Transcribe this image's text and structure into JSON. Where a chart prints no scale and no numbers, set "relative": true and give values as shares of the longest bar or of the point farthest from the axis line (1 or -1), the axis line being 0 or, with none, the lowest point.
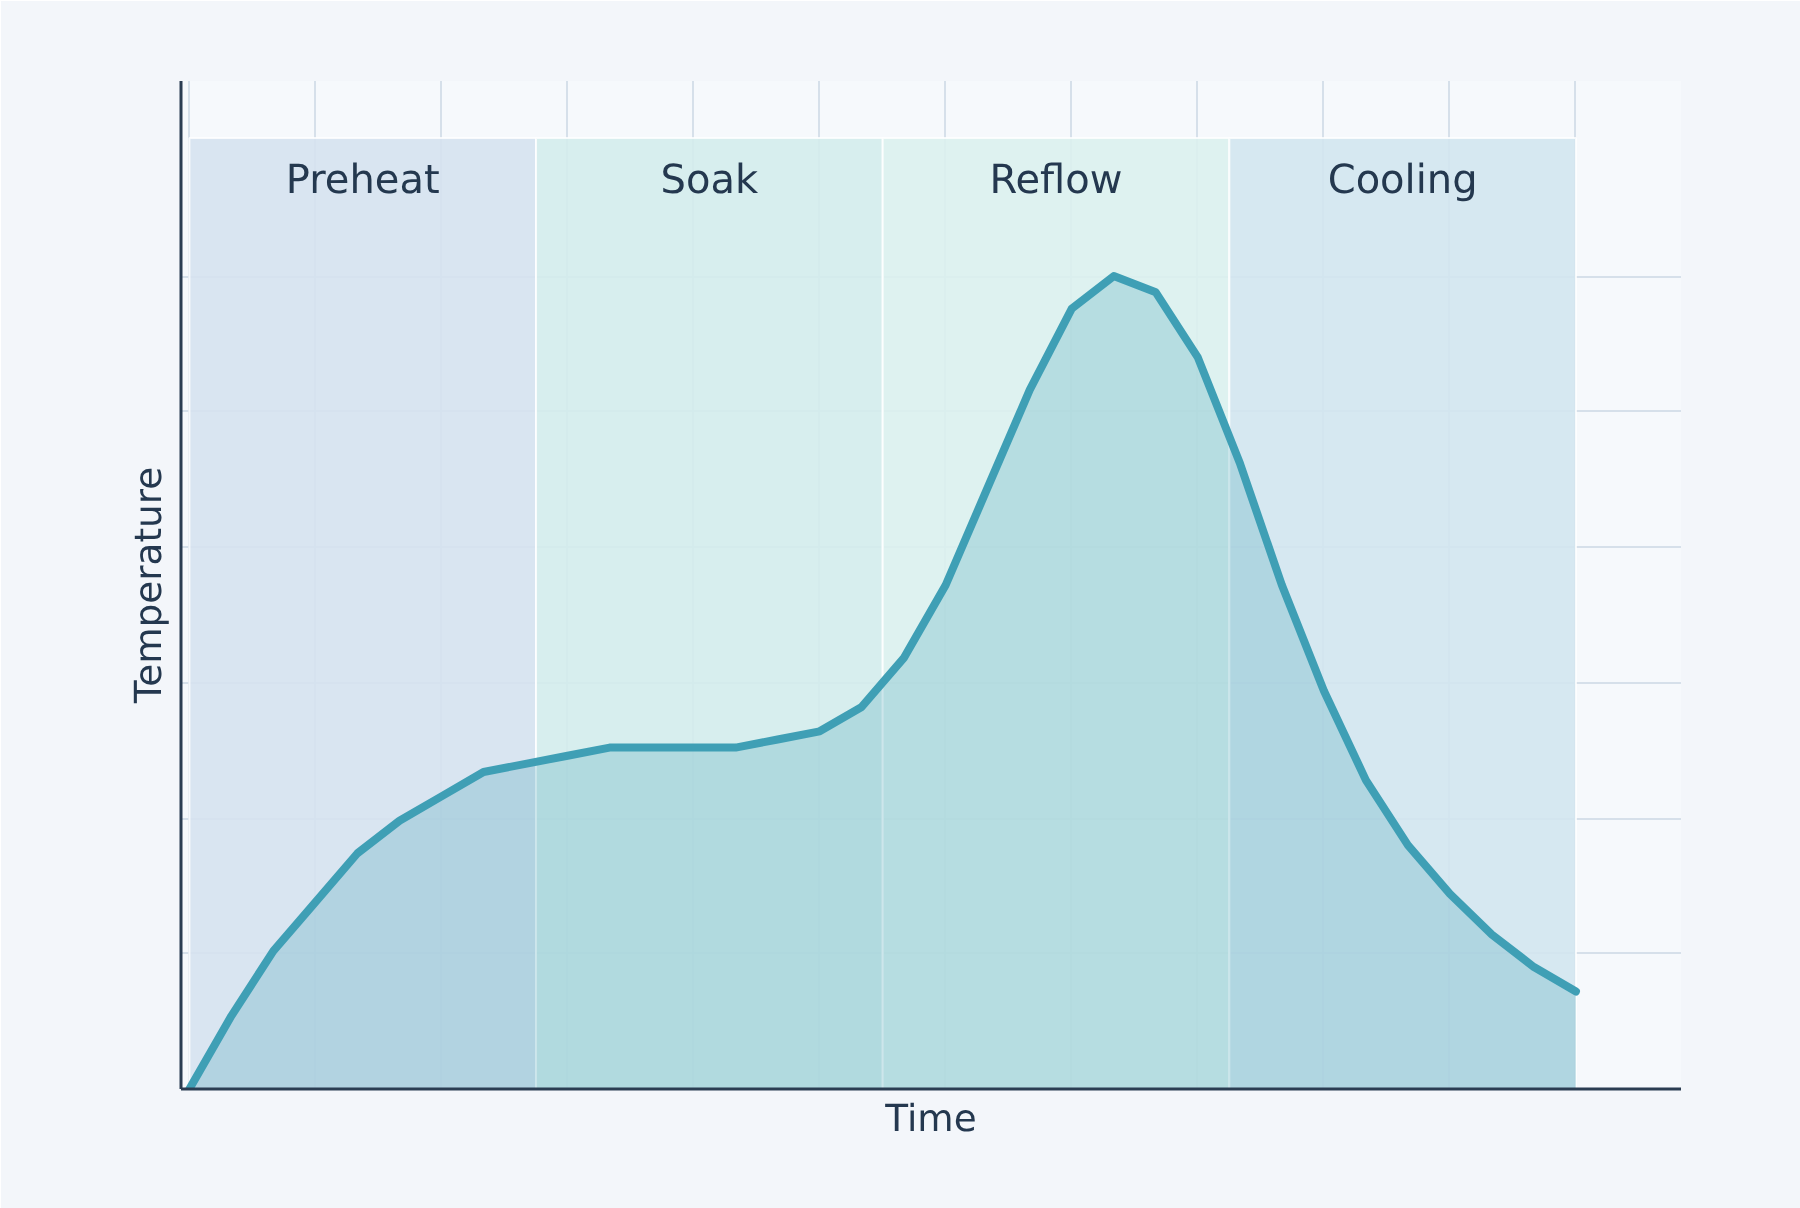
{
  "chart_data": {
    "type": "area",
    "relative": true,
    "xlabel": "Time",
    "ylabel": "Temperature",
    "grid": true,
    "annotations": [
      "Preheat",
      "Soak",
      "Reflow",
      "Cooling"
    ],
    "categories": [
      null,
      null,
      null,
      null,
      null,
      null,
      null,
      null,
      null,
      null,
      null,
      null,
      null,
      null,
      null,
      null,
      null,
      null,
      null,
      null,
      null,
      null,
      null,
      null,
      null,
      null,
      null,
      null,
      null,
      null,
      null,
      null,
      null,
      null
    ],
    "series": [
      {
        "color": "#3f9fb5",
        "values": [
          0,
          0.09,
          0.17,
          0.23,
          0.29,
          0.33,
          0.36,
          0.39,
          0.4,
          0.41,
          0.42,
          0.42,
          0.42,
          0.42,
          0.43,
          0.44,
          0.47,
          0.53,
          0.62,
          0.74,
          0.86,
          0.96,
          1,
          0.98,
          0.9,
          0.77,
          0.62,
          0.49,
          0.38,
          0.3,
          0.24,
          0.19,
          0.15,
          0.12
        ]
      }
    ]
  }
}
